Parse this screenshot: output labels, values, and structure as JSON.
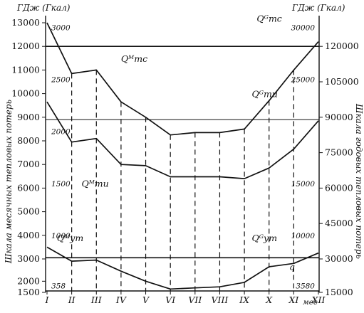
{
  "chart_data": {
    "type": "line",
    "header_left": "ГДж (Гкал)",
    "header_right": "ГДж (Гкал)",
    "ylabel_left": "Шкала месячных тепловых потерь",
    "ylabel_right": "Шкала годовых тепловых потерь",
    "xunit": "мес",
    "categories": [
      "I",
      "II",
      "III",
      "IV",
      "V",
      "VI",
      "VII",
      "VIII",
      "IX",
      "X",
      "XI",
      "XII"
    ],
    "left_axis": {
      "ticks": [
        1500,
        2000,
        3000,
        4000,
        5000,
        6000,
        7000,
        8000,
        9000,
        10000,
        11000,
        12000,
        13000
      ],
      "gcal_labels": [
        {
          "value": 12800,
          "text": "3000"
        },
        {
          "value": 10600,
          "text": "2500"
        },
        {
          "value": 8400,
          "text": "2000"
        },
        {
          "value": 6200,
          "text": "1500"
        },
        {
          "value": 4000,
          "text": "1000"
        },
        {
          "value": 1800,
          "text": "358"
        }
      ]
    },
    "right_axis": {
      "ticks": [
        {
          "value": 12000,
          "text": "120000"
        },
        {
          "value": 10500,
          "text": "105000"
        },
        {
          "value": 9000,
          "text": "90000"
        },
        {
          "value": 7500,
          "text": "75000"
        },
        {
          "value": 6000,
          "text": "60000"
        },
        {
          "value": 4500,
          "text": "45000"
        },
        {
          "value": 3000,
          "text": "30000"
        },
        {
          "value": 1500,
          "text": "15000"
        }
      ],
      "gcal_labels": [
        {
          "value": 12800,
          "text": "30000"
        },
        {
          "value": 10600,
          "text": "25000"
        },
        {
          "value": 6200,
          "text": "15000"
        },
        {
          "value": 4000,
          "text": "10000"
        },
        {
          "value": 1800,
          "text": "3580"
        }
      ]
    },
    "monthly_series": [
      {
        "name": "Qᴹтс",
        "values": [
          13000,
          10850,
          11000,
          9650,
          9000,
          8250,
          8350,
          8350,
          8500,
          9700,
          11000,
          12200
        ]
      },
      {
        "name": "Qᴹти",
        "values": [
          9650,
          7950,
          8100,
          7000,
          6950,
          6480,
          6480,
          6480,
          6400,
          6850,
          7650,
          8850
        ]
      },
      {
        "name": "Qᴹут",
        "values": [
          3500,
          2900,
          2950,
          2450,
          2000,
          1650,
          1700,
          1750,
          1950,
          2650,
          2800,
          3250
        ]
      }
    ],
    "annual_lines": [
      {
        "name": "Qᴳтс",
        "value": 12000
      },
      {
        "name": "Qᴳти",
        "value": 8900
      },
      {
        "name": "Qᴳут",
        "value": 3050
      }
    ],
    "annotations": [
      {
        "text": "Qᴳтс",
        "month": 8.5,
        "value": 13050
      },
      {
        "text": "Qᴹтс",
        "month": 3.0,
        "value": 11350
      },
      {
        "text": "Qᴳти",
        "month": 8.3,
        "value": 9850
      },
      {
        "text": "Qᴹти",
        "month": 1.4,
        "value": 6050
      },
      {
        "text": "Qᴹут",
        "month": 0.4,
        "value": 3750
      },
      {
        "text": "Qᴳут",
        "month": 8.3,
        "value": 3750
      }
    ],
    "corner_mark": "q"
  }
}
